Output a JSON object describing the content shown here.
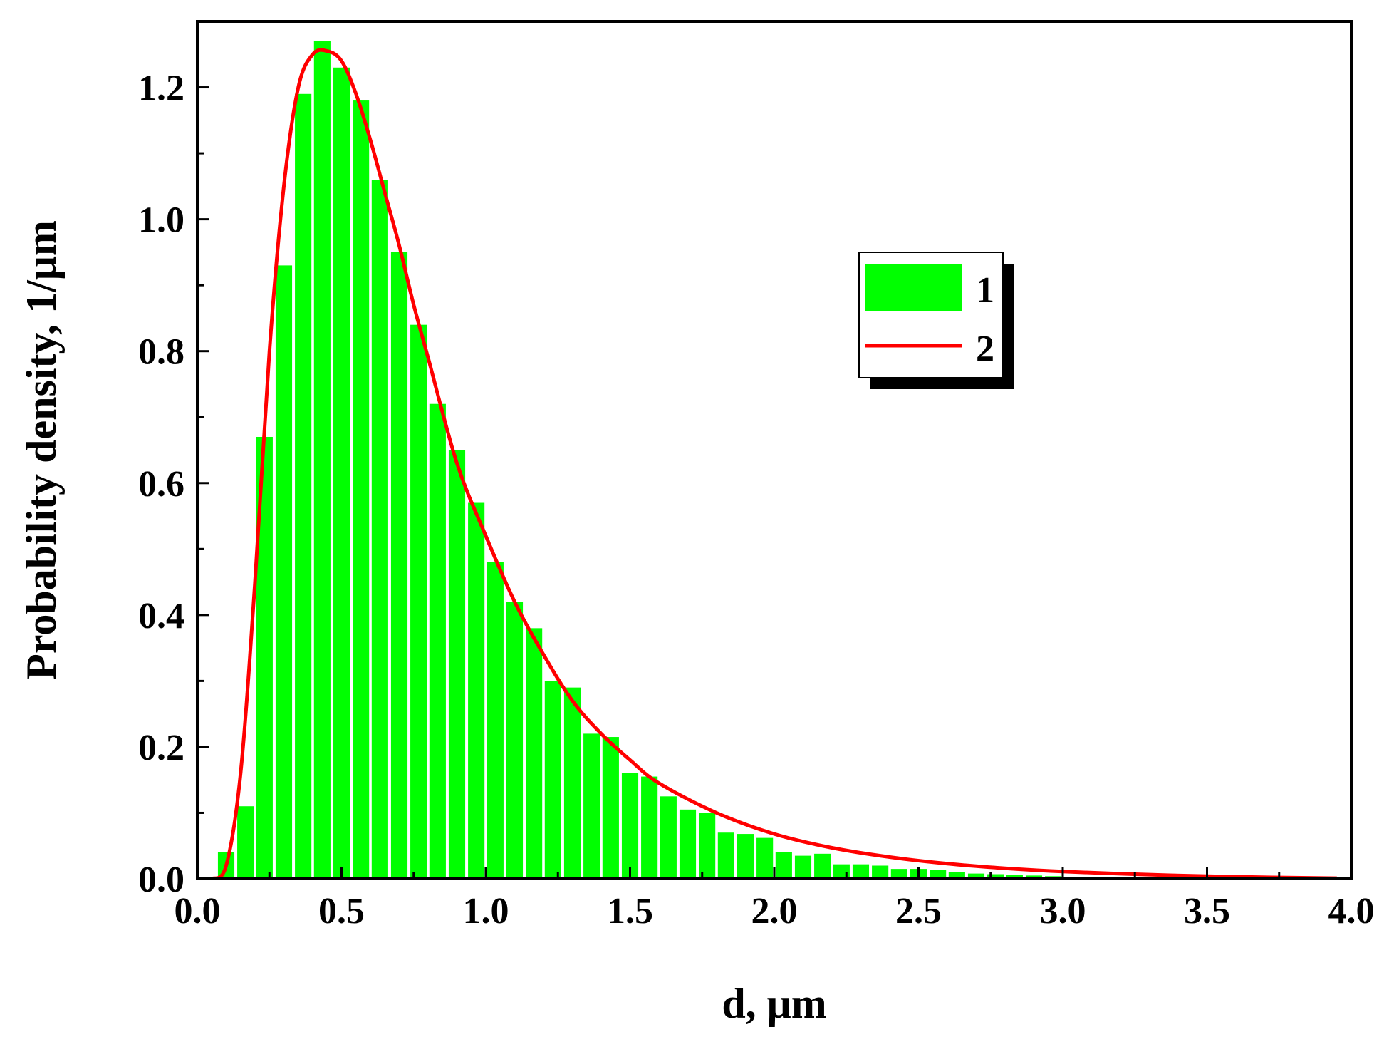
{
  "chart_data": {
    "type": "bar",
    "xlabel": "d, μm",
    "ylabel": "Probability density, 1/μm",
    "xlim": [
      0.0,
      4.0
    ],
    "ylim": [
      0.0,
      1.3
    ],
    "xticks": [
      "0.0",
      "0.5",
      "1.0",
      "1.5",
      "2.0",
      "2.5",
      "3.0",
      "3.5",
      "4.0"
    ],
    "yticks": [
      "0.0",
      "0.2",
      "0.4",
      "0.6",
      "0.8",
      "1.0",
      "1.2"
    ],
    "grid": false,
    "legend_position": "upper-right",
    "series": [
      {
        "name": "1",
        "kind": "histogram",
        "color": "#00ff00",
        "bin_width": 0.067,
        "x": [
          0.1,
          0.167,
          0.233,
          0.3,
          0.367,
          0.433,
          0.5,
          0.567,
          0.633,
          0.7,
          0.767,
          0.833,
          0.9,
          0.967,
          1.033,
          1.1,
          1.167,
          1.233,
          1.3,
          1.367,
          1.433,
          1.5,
          1.567,
          1.633,
          1.7,
          1.767,
          1.833,
          1.9,
          1.967,
          2.033,
          2.1,
          2.167,
          2.233,
          2.3,
          2.367,
          2.433,
          2.5,
          2.567,
          2.633,
          2.7,
          2.767,
          2.833,
          2.9,
          2.967,
          3.033,
          3.1,
          3.167,
          3.233
        ],
        "values": [
          0.04,
          0.11,
          0.67,
          0.93,
          1.19,
          1.27,
          1.23,
          1.18,
          1.06,
          0.95,
          0.84,
          0.72,
          0.65,
          0.57,
          0.48,
          0.42,
          0.38,
          0.3,
          0.29,
          0.22,
          0.215,
          0.16,
          0.155,
          0.125,
          0.105,
          0.1,
          0.07,
          0.068,
          0.062,
          0.04,
          0.035,
          0.038,
          0.022,
          0.022,
          0.02,
          0.015,
          0.015,
          0.013,
          0.01,
          0.008,
          0.007,
          0.006,
          0.005,
          0.004,
          0.003,
          0.003,
          0.002,
          0.002
        ]
      },
      {
        "name": "2",
        "kind": "line",
        "color": "#ff0000",
        "x": [
          0.05,
          0.1,
          0.15,
          0.2,
          0.25,
          0.3,
          0.35,
          0.4,
          0.45,
          0.5,
          0.55,
          0.6,
          0.65,
          0.7,
          0.75,
          0.8,
          0.9,
          1.0,
          1.1,
          1.2,
          1.3,
          1.4,
          1.5,
          1.6,
          1.8,
          2.0,
          2.2,
          2.4,
          2.6,
          2.8,
          3.0,
          3.25,
          3.5,
          3.75,
          3.95
        ],
        "values": [
          0.0,
          0.02,
          0.16,
          0.45,
          0.8,
          1.05,
          1.2,
          1.25,
          1.255,
          1.24,
          1.19,
          1.12,
          1.04,
          0.96,
          0.87,
          0.79,
          0.63,
          0.52,
          0.42,
          0.34,
          0.27,
          0.22,
          0.18,
          0.145,
          0.1,
          0.068,
          0.047,
          0.033,
          0.023,
          0.016,
          0.011,
          0.007,
          0.004,
          0.002,
          0.001
        ]
      }
    ]
  }
}
